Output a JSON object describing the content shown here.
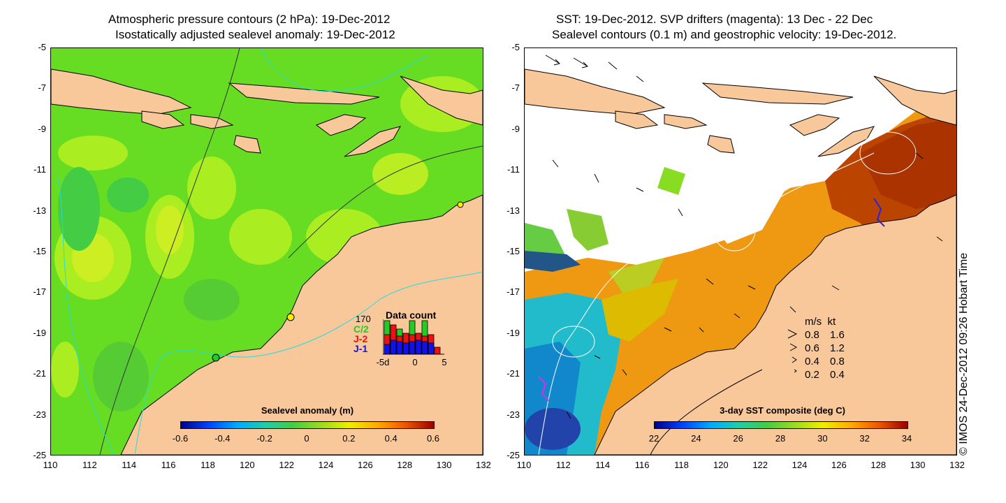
{
  "left_panel": {
    "title_line1": "Atmospheric pressure contours (2 hPa): 19-Dec-2012",
    "title_line2": "Isostatically adjusted sealevel anomaly: 19-Dec-2012",
    "colorbar": {
      "title": "Sealevel anomaly (m)",
      "ticks": [
        "-0.6",
        "-0.4",
        "-0.2",
        "0",
        "0.2",
        "0.4",
        "0.6"
      ]
    },
    "data_count": {
      "title": "Data count",
      "max_label": "170",
      "series": [
        "C/2",
        "J-2",
        "J-1"
      ],
      "series_colors": [
        "#22cc22",
        "#ee1111",
        "#1111ee"
      ],
      "x_ticks": [
        "-5d",
        "0",
        "5"
      ]
    }
  },
  "right_panel": {
    "title_line1": "SST: 19-Dec-2012. SVP drifters (magenta): 13 Dec - 22 Dec",
    "title_line2": "Sealevel contours (0.1 m) and geostrophic velocity: 19-Dec-2012.",
    "colorbar": {
      "title": "3-day SST composite (deg C)",
      "ticks": [
        "22",
        "24",
        "26",
        "28",
        "30",
        "32",
        "34"
      ]
    },
    "velocity_legend": {
      "header": "m/s  kt",
      "rows": [
        {
          "ms": "0.8",
          "kt": "1.6"
        },
        {
          "ms": "0.6",
          "kt": "1.2"
        },
        {
          "ms": "0.4",
          "kt": "0.8"
        },
        {
          "ms": "0.2",
          "kt": "0.4"
        }
      ]
    }
  },
  "axes": {
    "lat_ticks": [
      "-5",
      "-7",
      "-9",
      "-11",
      "-13",
      "-15",
      "-17",
      "-19",
      "-21",
      "-23",
      "-25"
    ],
    "lon_ticks": [
      "110",
      "112",
      "114",
      "116",
      "118",
      "120",
      "122",
      "124",
      "126",
      "128",
      "130",
      "132"
    ]
  },
  "credit": "© IMOS 24-Dec-2012 09:26 Hobart Time",
  "colors": {
    "land": "#f9c89a",
    "ocean_green": "#66dd22",
    "ocean_yellow": "#ccee22",
    "sst_orange": "#ee9911",
    "sst_red": "#bb3300",
    "sst_cyan": "#22bbcc",
    "contour_cyan": "#22dddd"
  }
}
